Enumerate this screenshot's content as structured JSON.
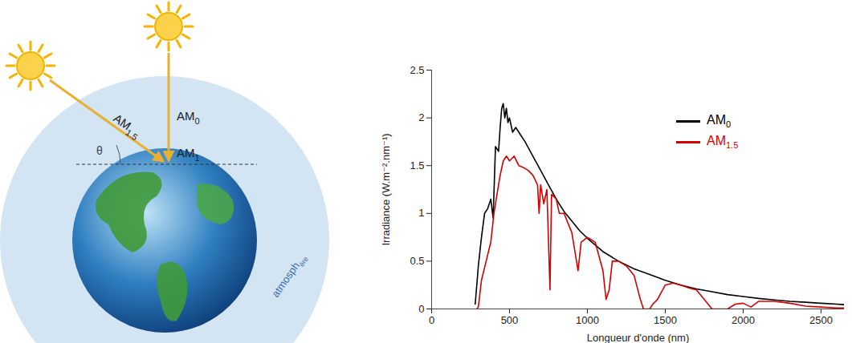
{
  "diagram": {
    "am0": "AM0",
    "am1": "AM1",
    "am15": "AM1.5",
    "angle": "θ",
    "atmosphere": "atmosphère"
  },
  "chart_data": {
    "type": "line",
    "x_label": "Longueur d'onde (nm)",
    "y_label": "Irradiance (W.m⁻².nm⁻¹)",
    "xlim": [
      0,
      2650
    ],
    "xticks": [
      0,
      500,
      1000,
      1500,
      2000,
      2500
    ],
    "ylim": [
      0,
      2.5
    ],
    "yticks": [
      0,
      0.5,
      1,
      1.5,
      2,
      2.5
    ],
    "legend": "upper right",
    "series": [
      {
        "name": "AM0",
        "color": "#000000",
        "x": [
          280,
          300,
          320,
          340,
          360,
          380,
          395,
          410,
          430,
          440,
          450,
          460,
          470,
          480,
          490,
          500,
          520,
          540,
          560,
          580,
          600,
          650,
          700,
          750,
          800,
          850,
          900,
          950,
          1000,
          1100,
          1200,
          1300,
          1400,
          1500,
          1600,
          1700,
          1800,
          1900,
          2000,
          2100,
          2200,
          2300,
          2400,
          2500,
          2600,
          2650
        ],
        "values": [
          0.05,
          0.45,
          0.75,
          1.0,
          1.05,
          1.15,
          0.95,
          1.7,
          1.65,
          1.9,
          2.1,
          2.15,
          2.0,
          2.1,
          1.95,
          2.0,
          1.85,
          1.9,
          1.85,
          1.8,
          1.75,
          1.6,
          1.45,
          1.3,
          1.15,
          1.02,
          0.92,
          0.82,
          0.74,
          0.6,
          0.5,
          0.42,
          0.36,
          0.3,
          0.25,
          0.21,
          0.18,
          0.15,
          0.13,
          0.11,
          0.095,
          0.08,
          0.07,
          0.06,
          0.05,
          0.045
        ]
      },
      {
        "name": "AM1.5",
        "color": "#d40000",
        "x": [
          290,
          300,
          320,
          350,
          380,
          400,
          420,
          440,
          460,
          480,
          500,
          530,
          560,
          590,
          620,
          650,
          680,
          690,
          700,
          720,
          740,
          760,
          770,
          800,
          820,
          850,
          900,
          920,
          940,
          960,
          1000,
          1050,
          1100,
          1120,
          1140,
          1160,
          1200,
          1250,
          1300,
          1340,
          1360,
          1400,
          1420,
          1450,
          1500,
          1550,
          1600,
          1650,
          1700,
          1750,
          1800,
          1850,
          1900,
          1950,
          2000,
          2050,
          2100,
          2200,
          2300,
          2400,
          2500,
          2600,
          2650
        ],
        "values": [
          0,
          0.02,
          0.3,
          0.5,
          0.7,
          1.0,
          1.2,
          1.4,
          1.55,
          1.6,
          1.55,
          1.6,
          1.5,
          1.48,
          1.45,
          1.4,
          1.3,
          1.0,
          1.3,
          1.1,
          1.25,
          0.2,
          1.2,
          1.15,
          1.0,
          1.0,
          0.8,
          0.6,
          0.4,
          0.7,
          0.75,
          0.7,
          0.4,
          0.1,
          0.2,
          0.5,
          0.5,
          0.45,
          0.35,
          0.1,
          0,
          0,
          0.05,
          0.1,
          0.25,
          0.27,
          0.25,
          0.22,
          0.2,
          0.1,
          0,
          0,
          0,
          0.05,
          0.06,
          0.02,
          0.08,
          0.08,
          0.06,
          0.03,
          0.02,
          0.01,
          0.01
        ]
      }
    ]
  }
}
